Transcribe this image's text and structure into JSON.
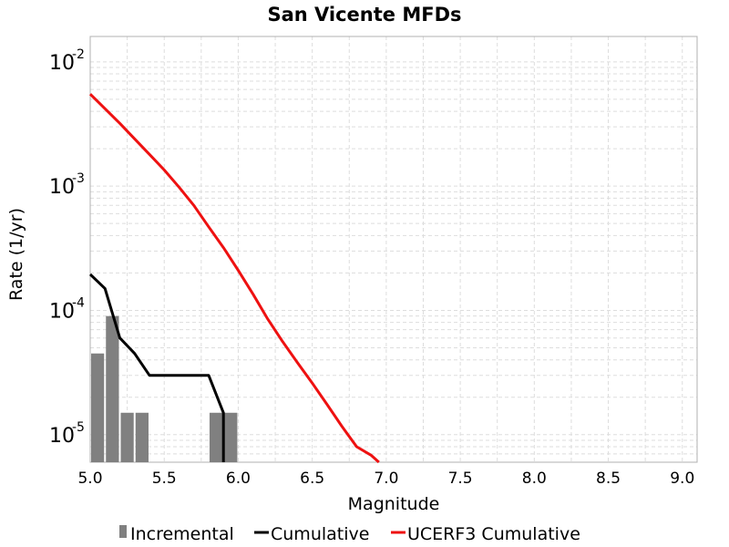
{
  "chart_data": {
    "type": "line",
    "title": "San Vicente MFDs",
    "xlabel": "Magnitude",
    "ylabel": "Rate (1/yr)",
    "xlim": [
      5.0,
      9.1
    ],
    "ylim": [
      6e-06,
      0.016
    ],
    "yscale": "log",
    "grid": true,
    "legend_position": "bottom",
    "x_ticks": [
      "5.0",
      "5.5",
      "6.0",
      "6.5",
      "7.0",
      "7.5",
      "8.0",
      "8.5",
      "9.0"
    ],
    "y_ticks": [
      {
        "base": "10",
        "exp": "-5",
        "value": 1e-05
      },
      {
        "base": "10",
        "exp": "-4",
        "value": 0.0001
      },
      {
        "base": "10",
        "exp": "-3",
        "value": 0.001
      },
      {
        "base": "10",
        "exp": "-2",
        "value": 0.01
      }
    ],
    "legend": [
      {
        "label": "Incremental",
        "symbol": "bar",
        "color": "#808080"
      },
      {
        "label": "Cumulative",
        "symbol": "line",
        "color": "#000000"
      },
      {
        "label": "UCERF3 Cumulative",
        "symbol": "line",
        "color": "#ee1111"
      }
    ],
    "series": [
      {
        "name": "Incremental",
        "kind": "bar",
        "color": "#808080",
        "x": [
          5.05,
          5.15,
          5.25,
          5.35,
          5.85,
          5.95
        ],
        "y": [
          4.5e-05,
          9e-05,
          1.5e-05,
          1.5e-05,
          1.5e-05,
          1.5e-05
        ]
      },
      {
        "name": "Cumulative",
        "kind": "line",
        "color": "#000000",
        "x": [
          5.0,
          5.1,
          5.2,
          5.3,
          5.4,
          5.5,
          5.6,
          5.7,
          5.8,
          5.9,
          5.9
        ],
        "y": [
          0.000195,
          0.00015,
          6e-05,
          4.5e-05,
          3e-05,
          3e-05,
          3e-05,
          3e-05,
          3e-05,
          1.5e-05,
          6e-06
        ]
      },
      {
        "name": "UCERF3 Cumulative",
        "kind": "line",
        "color": "#ee1111",
        "x": [
          5.0,
          5.1,
          5.2,
          5.3,
          5.4,
          5.5,
          5.6,
          5.7,
          5.8,
          5.9,
          6.0,
          6.1,
          6.2,
          6.3,
          6.4,
          6.5,
          6.6,
          6.7,
          6.8,
          6.9,
          6.95
        ],
        "y": [
          0.0055,
          0.0042,
          0.0032,
          0.0024,
          0.0018,
          0.00135,
          0.00098,
          0.0007,
          0.00047,
          0.00032,
          0.00021,
          0.000135,
          8.5e-05,
          5.6e-05,
          3.8e-05,
          2.6e-05,
          1.75e-05,
          1.17e-05,
          8e-06,
          6.8e-06,
          6e-06
        ]
      }
    ]
  }
}
